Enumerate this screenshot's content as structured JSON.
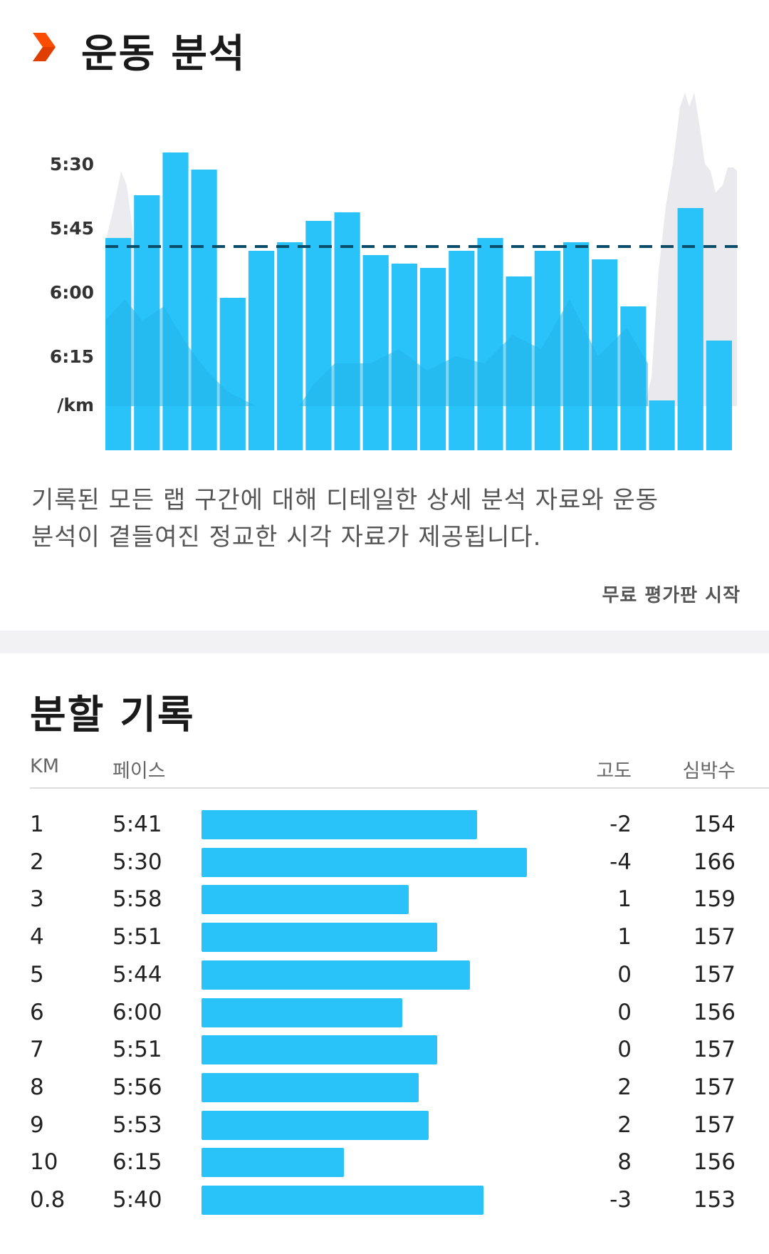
{
  "analysis": {
    "title": "운동 분석",
    "accent_color": "#fc4c02",
    "bar_color": "#29c3fa",
    "description_line1": "기록된 모든 랩 구간에 대해 디테일한 상세 분석 자료와 운동",
    "description_line2": "분석이 곁들여진 정교한 시각 자료가 제공됩니다.",
    "trial_link": "무료 평가판 시작"
  },
  "chart_data": {
    "type": "bar",
    "y_tick_labels": [
      "5:30",
      "5:45",
      "6:00",
      "6:15"
    ],
    "y_unit_label": "/km",
    "y_ticks_sec": [
      330,
      345,
      360,
      375
    ],
    "ylim_sec": [
      320,
      390
    ],
    "reference_pace_sec": 349,
    "reference_line": "dashed",
    "values_sec": [
      347,
      337,
      327,
      331,
      361,
      350,
      348,
      343,
      341,
      351,
      353,
      354,
      350,
      347,
      356,
      350,
      348,
      352,
      363,
      385,
      340,
      371
    ]
  },
  "splits": {
    "title": "분할 기록",
    "headers": {
      "km": "KM",
      "pace": "페이스",
      "elevation": "고도",
      "heart_rate": "심박수"
    },
    "rows": [
      {
        "km": "1",
        "pace": "5:41",
        "elev": "-2",
        "hr": "154",
        "bar_fraction": 0.847
      },
      {
        "km": "2",
        "pace": "5:30",
        "elev": "-4",
        "hr": "166",
        "bar_fraction": 1.0
      },
      {
        "km": "3",
        "pace": "5:58",
        "elev": "1",
        "hr": "159",
        "bar_fraction": 0.637
      },
      {
        "km": "4",
        "pace": "5:51",
        "elev": "1",
        "hr": "157",
        "bar_fraction": 0.725
      },
      {
        "km": "5",
        "pace": "5:44",
        "elev": "0",
        "hr": "157",
        "bar_fraction": 0.825
      },
      {
        "km": "6",
        "pace": "6:00",
        "elev": "0",
        "hr": "156",
        "bar_fraction": 0.618
      },
      {
        "km": "7",
        "pace": "5:51",
        "elev": "0",
        "hr": "157",
        "bar_fraction": 0.725
      },
      {
        "km": "8",
        "pace": "5:56",
        "elev": "2",
        "hr": "157",
        "bar_fraction": 0.667
      },
      {
        "km": "9",
        "pace": "5:53",
        "elev": "2",
        "hr": "157",
        "bar_fraction": 0.697
      },
      {
        "km": "10",
        "pace": "6:15",
        "elev": "8",
        "hr": "156",
        "bar_fraction": 0.438
      },
      {
        "km": "0.8",
        "pace": "5:40",
        "elev": "-3",
        "hr": "153",
        "bar_fraction": 0.866
      }
    ]
  }
}
